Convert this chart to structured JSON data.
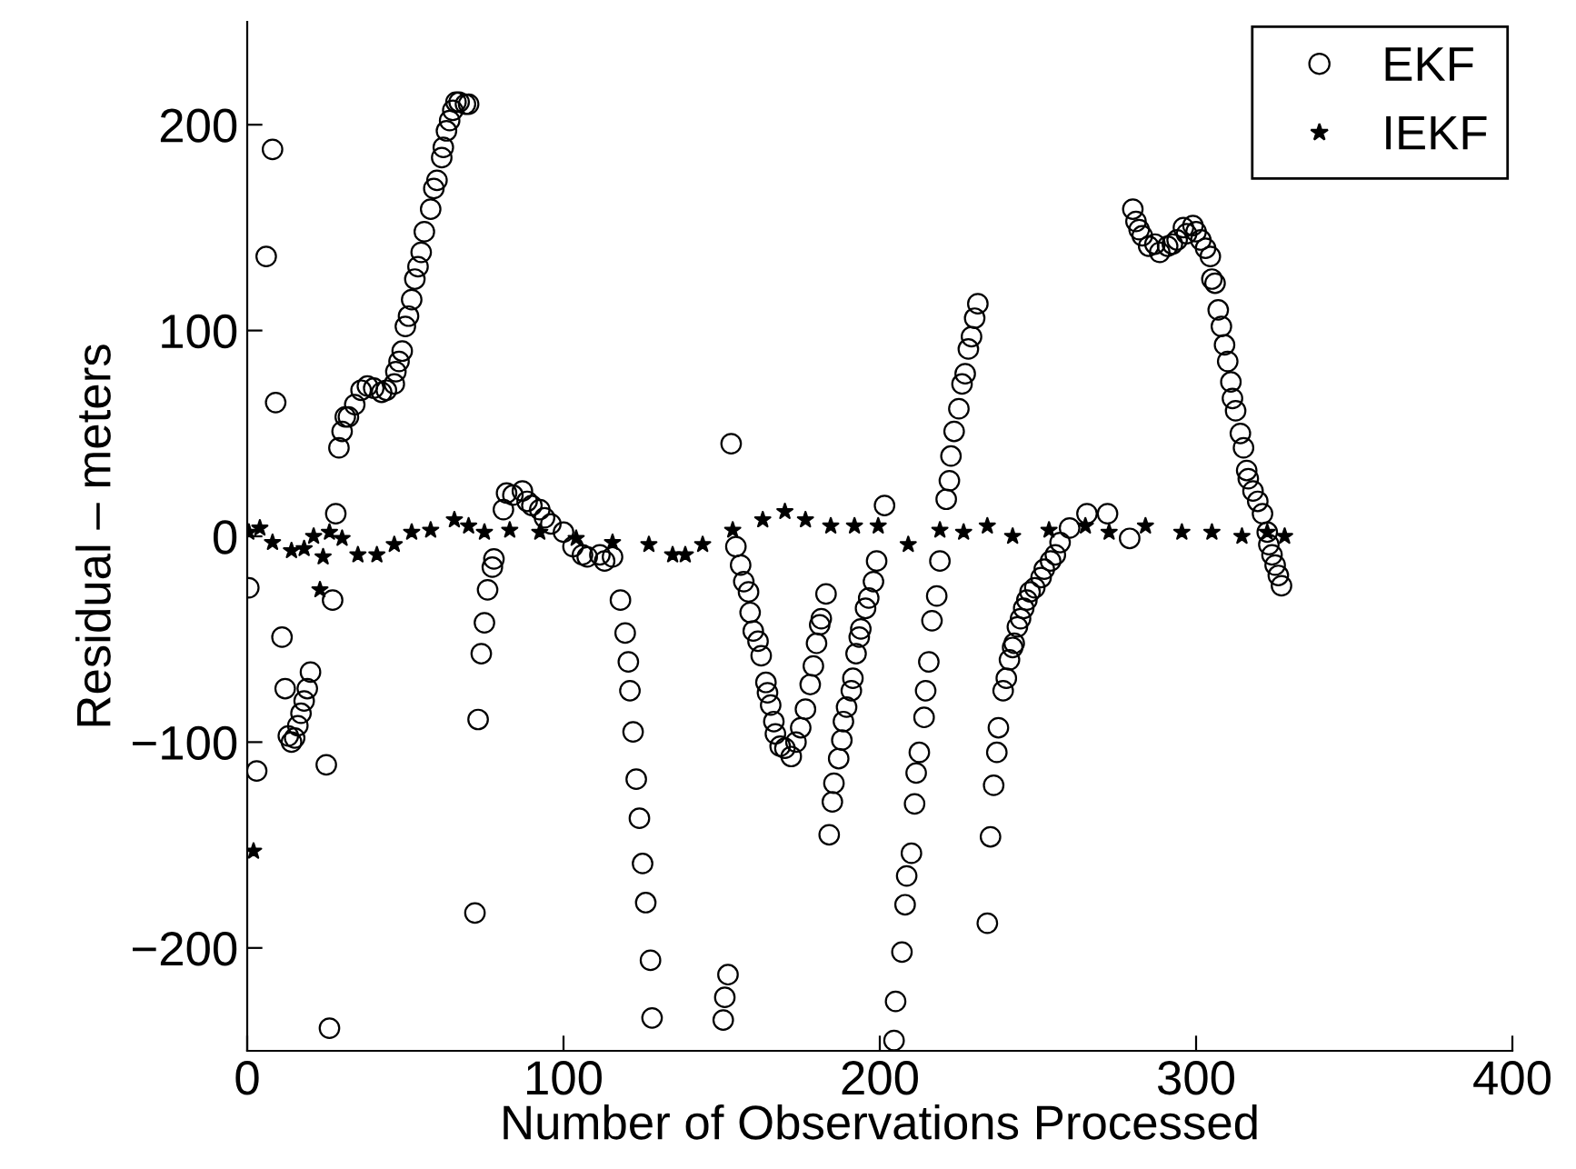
{
  "chart_data": {
    "type": "scatter",
    "xlabel": "Number of Observations Processed",
    "ylabel": "Residual – meters",
    "xlim": [
      0,
      400
    ],
    "xticks": [
      0,
      100,
      200,
      300,
      400
    ],
    "ylim": [
      -250,
      250
    ],
    "yticks": [
      {
        "value": -200,
        "label": "−200"
      },
      {
        "value": -100,
        "label": "−100"
      },
      0,
      100,
      200
    ],
    "grid": false,
    "legend": "top right",
    "series": [
      {
        "name": "EKF",
        "color": "#000000",
        "marker": "circle",
        "x": [
          0.5,
          3,
          6,
          8,
          9,
          11,
          12,
          13,
          14,
          15,
          16,
          17,
          18,
          19,
          20,
          25,
          26,
          27,
          28,
          29,
          30,
          31,
          32,
          34,
          36,
          38,
          40,
          42.5,
          44,
          46.5,
          47,
          48,
          49,
          50,
          51,
          52,
          53,
          54,
          55,
          56,
          58,
          59,
          60,
          61.5,
          62,
          63,
          64,
          65,
          66,
          67,
          69,
          70,
          72,
          73,
          74,
          75,
          76,
          77.5,
          78,
          81,
          82,
          84,
          87,
          88.5,
          90,
          92.5,
          94,
          96,
          100,
          103,
          106,
          107.5,
          111.5,
          113,
          115.5,
          118,
          119.5,
          120.5,
          121,
          122,
          123,
          124,
          125,
          126,
          127.5,
          128,
          150.5,
          151,
          152,
          153,
          154.5,
          156,
          157,
          158.5,
          159,
          160,
          161.5,
          162.5,
          164,
          164.5,
          165.5,
          166.5,
          167,
          168.5,
          170,
          172,
          173.5,
          175,
          176.5,
          178,
          179,
          180,
          181,
          181.5,
          183,
          184,
          185,
          185.5,
          187,
          188,
          188.5,
          189.5,
          191,
          191.5,
          192.5,
          193.5,
          194,
          195.5,
          196.5,
          198,
          199,
          201.5,
          204.5,
          205,
          207,
          208,
          208.5,
          210,
          211,
          211.5,
          212.5,
          214,
          214.5,
          215.5,
          216.5,
          218,
          219,
          221,
          222,
          222.5,
          223.5,
          225,
          226,
          227,
          228,
          229,
          230,
          231,
          234,
          235,
          236,
          237,
          237.5,
          239,
          240,
          241,
          242,
          242.5,
          243.5,
          244.5,
          245.5,
          246.5,
          247.5,
          249,
          251,
          252,
          254,
          255.5,
          257,
          260,
          265.5,
          272,
          279,
          280,
          281,
          282,
          283,
          285,
          287,
          288.5,
          291,
          292.5,
          294,
          296,
          297,
          299,
          300,
          301.5,
          303,
          304.5,
          305,
          306,
          307,
          308,
          309,
          310,
          311,
          311.5,
          312.5,
          314,
          315,
          316,
          316.5,
          318,
          319.5,
          321,
          322.5,
          323,
          324,
          325,
          326,
          327
        ],
        "values": [
          -25,
          -114,
          136,
          188,
          65,
          -49,
          -74,
          -97,
          -100,
          -98,
          -92,
          -86,
          -80,
          -74,
          -66,
          -111,
          -239,
          -31,
          11,
          43,
          51,
          58,
          58,
          64,
          71,
          73,
          72,
          70,
          71,
          74,
          80,
          85,
          90,
          102,
          107,
          115,
          125,
          131,
          138,
          148,
          159,
          169,
          173,
          184,
          189,
          197,
          202,
          207,
          211,
          211,
          210,
          210,
          -183,
          -89,
          -57,
          -42,
          -26,
          -15,
          -11,
          13,
          21,
          20,
          22,
          17,
          15,
          13,
          9,
          6,
          2,
          -5,
          -9,
          -10,
          -9,
          -12,
          -10,
          -31,
          -47,
          -61,
          -75,
          -95,
          -118,
          -137,
          -159,
          -178,
          -206,
          -234,
          -235,
          -224,
          -213,
          45,
          -5,
          -14,
          -22,
          -27,
          -37,
          -46,
          -51,
          -58,
          -71,
          -76,
          -82,
          -90,
          -96,
          -102,
          -103,
          -107,
          -100,
          -93,
          -84,
          -72,
          -63,
          -52,
          -43,
          -40,
          -28,
          -145,
          -129,
          -120,
          -108,
          -99,
          -90,
          -83,
          -75,
          -69,
          -57,
          -49,
          -45,
          -35,
          -30,
          -22,
          -12,
          15,
          -245,
          -226,
          -202,
          -179,
          -165,
          -154,
          -130,
          -115,
          -105,
          -88,
          -75,
          -61,
          -41,
          -29,
          -12,
          18,
          27,
          39,
          51,
          62,
          74,
          79,
          91,
          97,
          106,
          113,
          -188,
          -146,
          -121,
          -105,
          -93,
          -75,
          -69,
          -60,
          -54,
          -52,
          -44,
          -40,
          -35,
          -31,
          -27,
          -25,
          -20,
          -16,
          -12,
          -9,
          -3,
          4,
          11,
          11,
          -1,
          159,
          153,
          149,
          146,
          141,
          142,
          138,
          141,
          142,
          144,
          150,
          147,
          151,
          148,
          144,
          140,
          136,
          125,
          123,
          110,
          102,
          93,
          85,
          75,
          67,
          61,
          50,
          43,
          32,
          28,
          22,
          17,
          11,
          2,
          -4,
          -9,
          -14,
          -19,
          -24
        ]
      },
      {
        "name": "IEKF",
        "color": "#000000",
        "marker": "star",
        "x": [
          0.5,
          2,
          4,
          8,
          14,
          18,
          21,
          23,
          24,
          26,
          30,
          35,
          41,
          46.5,
          52,
          58,
          65.5,
          70,
          75,
          83,
          92.5,
          104,
          115.5,
          127,
          134.5,
          138.5,
          144,
          153.5,
          163,
          170,
          176.5,
          184.5,
          192,
          199.5,
          209,
          219,
          226.5,
          234,
          242,
          253.5,
          265,
          272.5,
          284,
          295.5,
          305,
          314.5,
          322.5,
          328
        ],
        "values": [
          2,
          -153,
          4,
          -3,
          -7,
          -6,
          0,
          -26,
          -10,
          2,
          -1,
          -9,
          -9,
          -4,
          2,
          3,
          8,
          5,
          2,
          3,
          2,
          -1,
          -3,
          -4,
          -9,
          -9,
          -4,
          3,
          8,
          12,
          8,
          5,
          5,
          5,
          -4,
          3,
          2,
          5,
          0,
          3,
          5,
          2,
          5,
          2,
          2,
          0,
          2,
          0
        ]
      }
    ]
  }
}
